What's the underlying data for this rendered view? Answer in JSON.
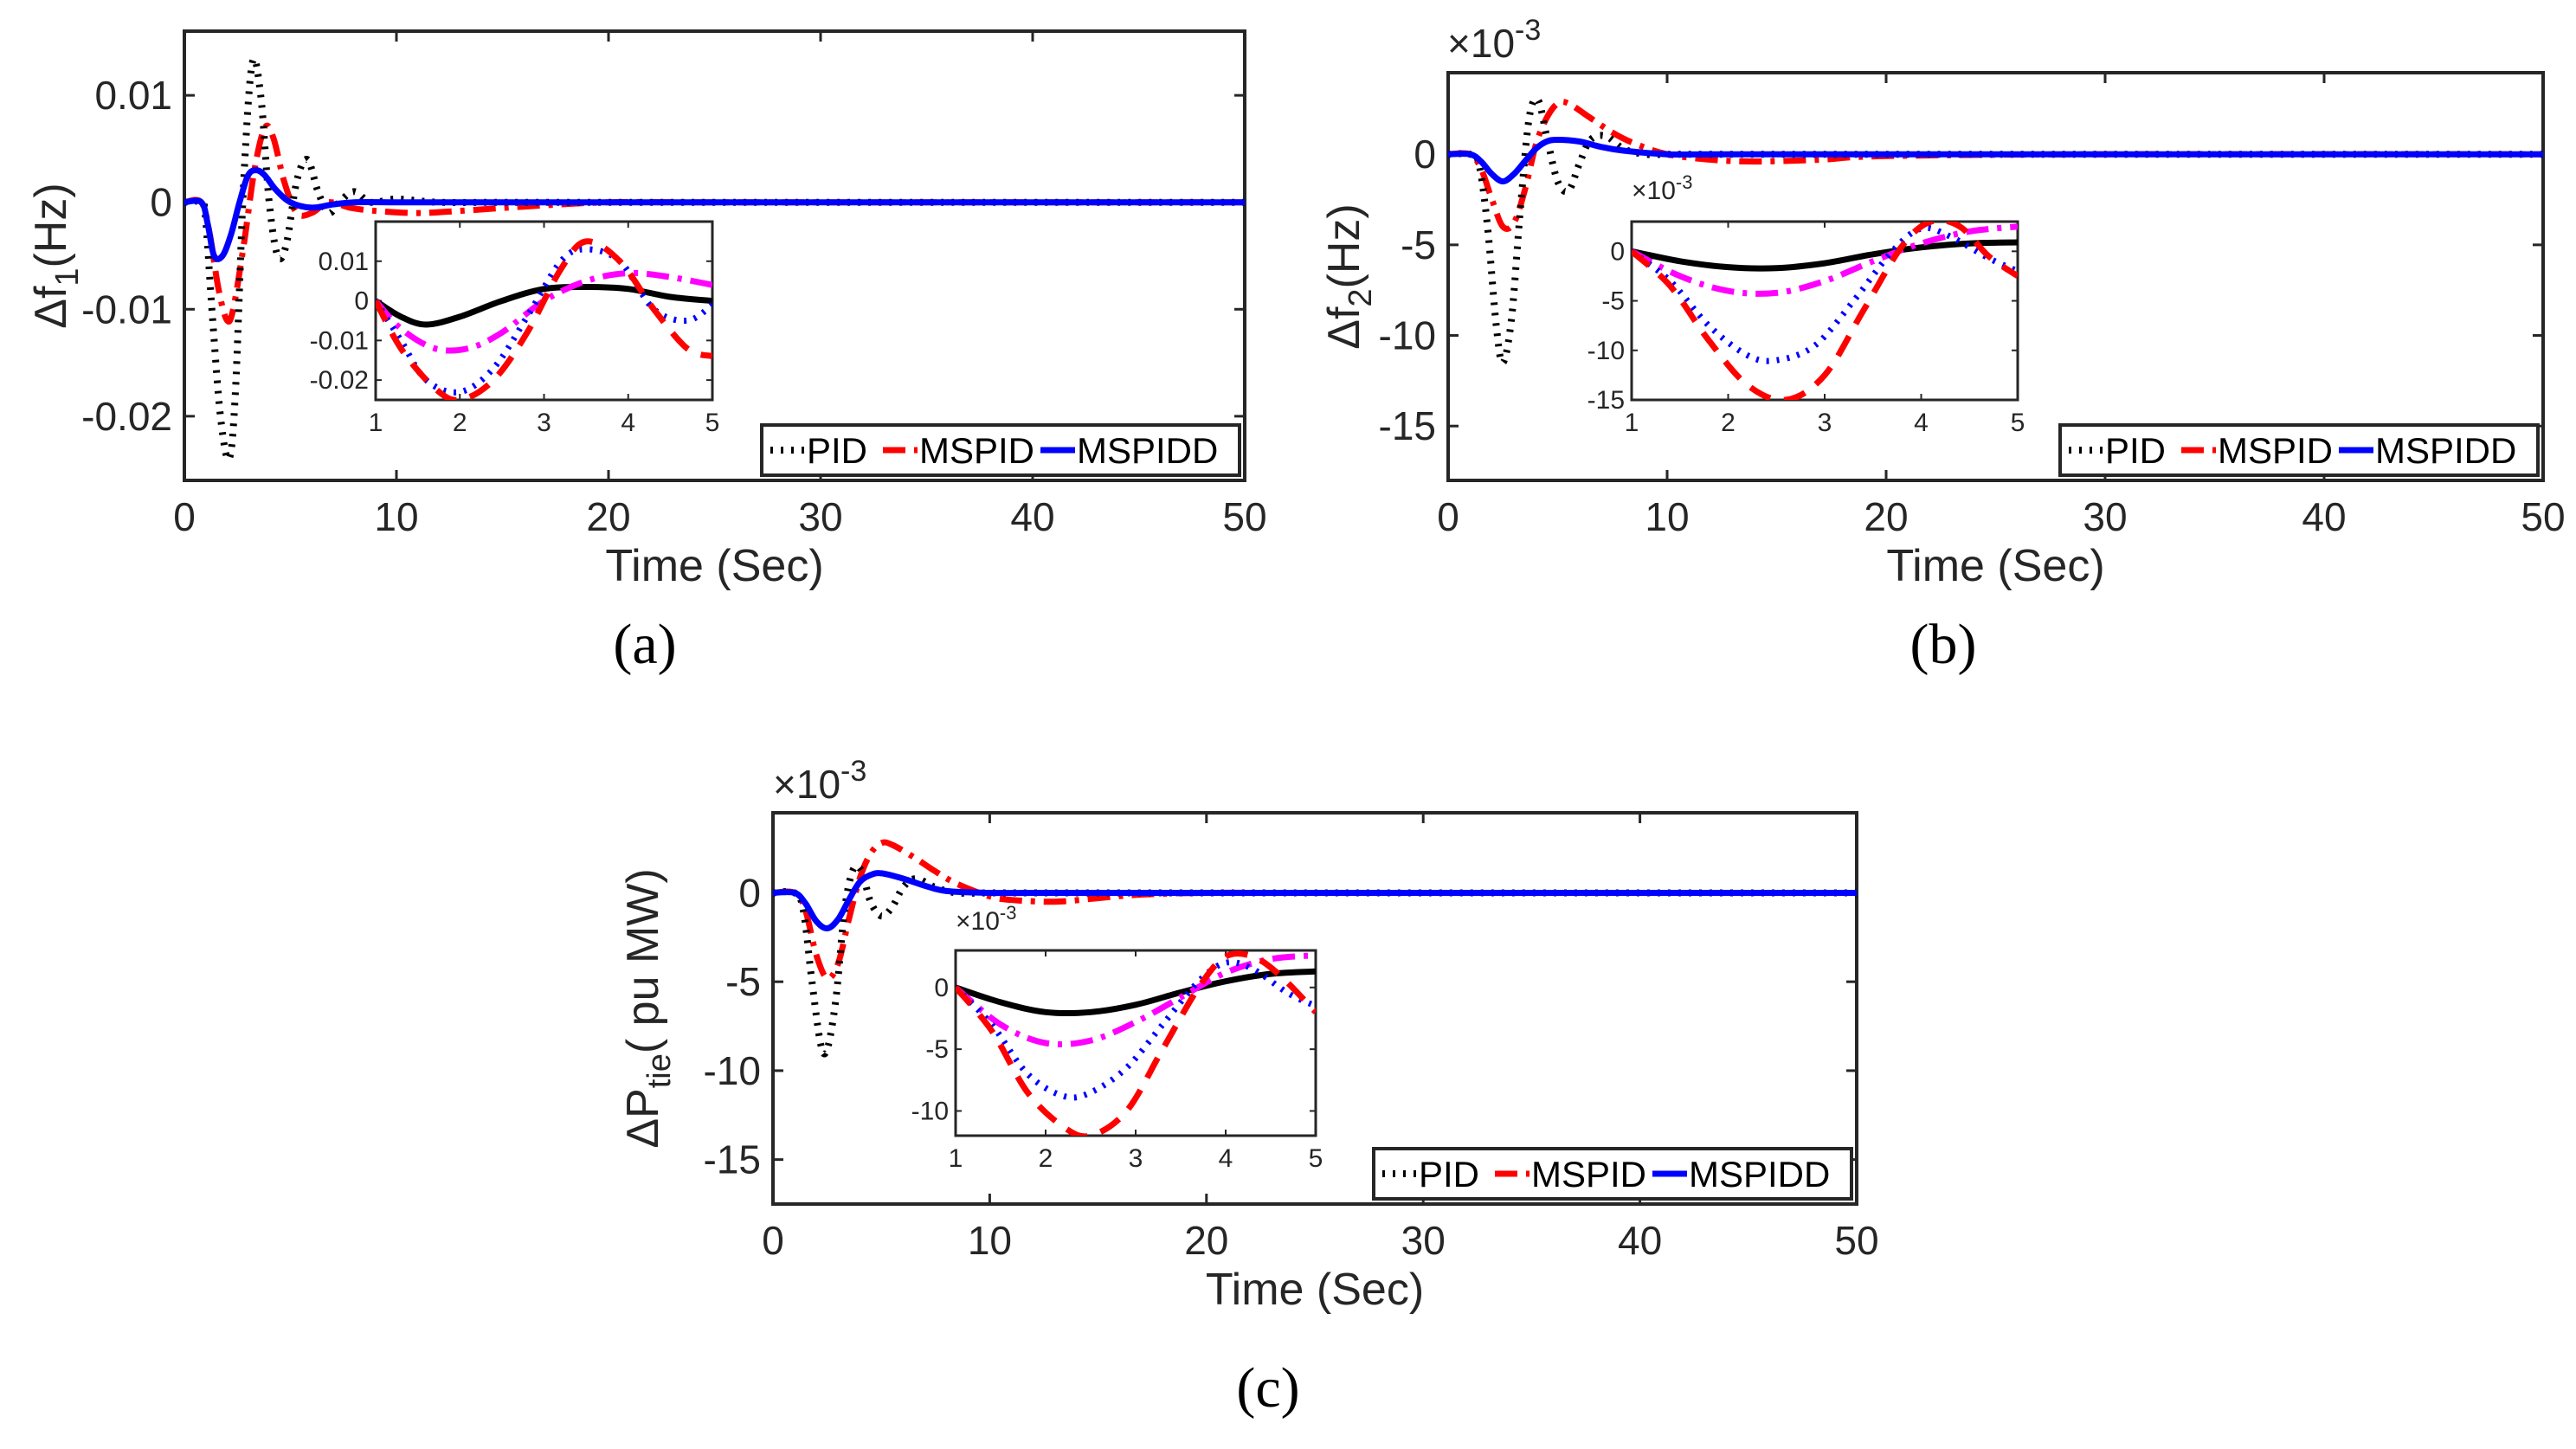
{
  "legend": [
    "PID",
    "MSPID",
    "MSPIDD"
  ],
  "colors": {
    "PID": "#000000",
    "MSPID": "#ff0000",
    "MSPIDD": "#0000ff",
    "inset_extra": "#ff00ff"
  },
  "chart_data": [
    {
      "type": "line",
      "panel_label": "(a)",
      "ylabel": "Δf",
      "ylabel_sub": "1",
      "ylabel_tail": "(Hz)",
      "xlabel": "Time (Sec)",
      "exponent": "",
      "xlim": [
        0,
        50
      ],
      "ylim": [
        -0.026,
        0.016
      ],
      "xticks": [
        0,
        10,
        20,
        30,
        40,
        50
      ],
      "yticks": [
        -0.02,
        -0.01,
        0,
        0.01
      ],
      "ytick_labels": [
        "-0.02",
        "-0.01",
        "0",
        "0.01"
      ],
      "series": [
        {
          "name": "PID",
          "style": "dotted",
          "x": [
            0,
            0.8,
            1.0,
            1.3,
            1.7,
            2.1,
            2.4,
            2.8,
            3.2,
            3.6,
            4.0,
            4.4,
            4.8,
            5.3,
            5.8,
            6.3,
            6.8,
            7.3,
            8.0,
            8.8,
            10,
            12,
            15,
            20,
            50
          ],
          "y": [
            0,
            0,
            -0.0015,
            -0.01,
            -0.02,
            -0.024,
            -0.018,
            0.002,
            0.013,
            0.01,
            0,
            -0.005,
            -0.004,
            0.002,
            0.004,
            0.001,
            -0.001,
            0,
            0.001,
            0,
            0.0003,
            0,
            0,
            0,
            0
          ]
        },
        {
          "name": "MSPID",
          "style": "dashdot",
          "x": [
            0,
            0.8,
            1.2,
            1.6,
            2.0,
            2.3,
            2.8,
            3.3,
            3.8,
            4.2,
            4.7,
            5.3,
            6.0,
            6.8,
            7.8,
            9,
            11,
            13,
            16,
            20,
            25,
            50
          ],
          "y": [
            0,
            0,
            -0.003,
            -0.008,
            -0.011,
            -0.01,
            -0.004,
            0.003,
            0.007,
            0.006,
            0.002,
            -0.001,
            -0.001,
            0,
            -0.0005,
            -0.0008,
            -0.001,
            -0.0008,
            -0.0004,
            0,
            0,
            0
          ]
        },
        {
          "name": "MSPIDD",
          "style": "solid",
          "x": [
            0,
            0.8,
            1.1,
            1.4,
            1.8,
            2.2,
            2.6,
            3.0,
            3.4,
            3.8,
            4.3,
            5.0,
            6.0,
            7.0,
            8.0,
            10,
            12,
            15,
            50
          ],
          "y": [
            0,
            0,
            -0.002,
            -0.005,
            -0.005,
            -0.003,
            0,
            0.0025,
            0.003,
            0.0025,
            0.0012,
            0,
            -0.0005,
            -0.0002,
            0,
            0,
            0,
            0,
            0
          ]
        }
      ],
      "inset": {
        "xlim": [
          1,
          5
        ],
        "ylim": [
          -0.025,
          0.02
        ],
        "xticks": [
          1,
          2,
          3,
          4,
          5
        ],
        "yticks": [
          -0.02,
          -0.01,
          0,
          0.01
        ],
        "ytick_labels": [
          "-0.02",
          "-0.01",
          "0",
          "0.01"
        ],
        "exponent": "",
        "series": [
          {
            "name": "black-solid",
            "color": "#000000",
            "style": "solid",
            "x": [
              1,
              1.3,
              1.6,
              2.0,
              2.5,
              3.0,
              3.5,
              4.0,
              4.5,
              5.0
            ],
            "y": [
              0,
              -0.004,
              -0.006,
              -0.004,
              0,
              0.003,
              0.0035,
              0.003,
              0.001,
              0
            ]
          },
          {
            "name": "magenta-dashdot",
            "color": "#ff00ff",
            "style": "dashdot",
            "x": [
              1,
              1.3,
              1.7,
              2.1,
              2.5,
              3.0,
              3.5,
              4.0,
              4.5,
              5.0
            ],
            "y": [
              0,
              -0.007,
              -0.012,
              -0.012,
              -0.008,
              0,
              0.005,
              0.007,
              0.006,
              0.004
            ]
          },
          {
            "name": "blue-dotted",
            "color": "#0000ff",
            "style": "dotted",
            "x": [
              1,
              1.3,
              1.6,
              2.0,
              2.4,
              2.8,
              3.2,
              3.5,
              3.9,
              4.3,
              4.7,
              5.0
            ],
            "y": [
              0,
              -0.01,
              -0.02,
              -0.023,
              -0.017,
              -0.004,
              0.01,
              0.013,
              0.01,
              -0.002,
              -0.005,
              -0.001
            ]
          },
          {
            "name": "red-dashed",
            "color": "#ff0000",
            "style": "dashed",
            "x": [
              1,
              1.3,
              1.7,
              2.0,
              2.4,
              2.8,
              3.2,
              3.5,
              3.9,
              4.3,
              4.7,
              5.0
            ],
            "y": [
              0,
              -0.012,
              -0.022,
              -0.025,
              -0.02,
              -0.008,
              0.008,
              0.015,
              0.01,
              -0.002,
              -0.012,
              -0.014
            ]
          }
        ]
      }
    },
    {
      "type": "line",
      "panel_label": "(b)",
      "ylabel": "Δf",
      "ylabel_sub": "2",
      "ylabel_tail": "(Hz)",
      "xlabel": "Time (Sec)",
      "exponent": "×10",
      "exponent_power": "-3",
      "xlim": [
        0,
        50
      ],
      "ylim": [
        -18,
        4.5
      ],
      "xticks": [
        0,
        10,
        20,
        30,
        40,
        50
      ],
      "yticks": [
        -15,
        -10,
        -5,
        0
      ],
      "ytick_labels": [
        "-15",
        "-10",
        "-5",
        "0"
      ],
      "series": [
        {
          "name": "PID",
          "style": "dotted",
          "x": [
            0,
            1.0,
            1.4,
            1.8,
            2.2,
            2.5,
            2.9,
            3.3,
            3.7,
            4.1,
            4.5,
            5.0,
            5.5,
            6.0,
            6.5,
            7.2,
            8.0,
            9.0,
            10,
            12,
            20,
            50
          ],
          "y": [
            0,
            0,
            -0.5,
            -4,
            -9.5,
            -11.5,
            -9,
            -3,
            2,
            3,
            1,
            -1.5,
            -2,
            -0.5,
            0.8,
            1,
            0.3,
            0,
            0,
            0,
            0,
            0
          ]
        },
        {
          "name": "MSPID",
          "style": "dashdot",
          "x": [
            0,
            1.0,
            1.5,
            2.0,
            2.5,
            3.0,
            3.5,
            4.0,
            4.5,
            5.0,
            5.5,
            6.5,
            7.5,
            8.5,
            10,
            12,
            14,
            17,
            20,
            30,
            50
          ],
          "y": [
            0,
            0,
            -0.8,
            -2.5,
            -4,
            -3.8,
            -2,
            0.5,
            2,
            2.8,
            2.8,
            2,
            1.2,
            0.6,
            0,
            -0.3,
            -0.4,
            -0.3,
            -0.1,
            0,
            0
          ]
        },
        {
          "name": "MSPIDD",
          "style": "solid",
          "x": [
            0,
            1.0,
            1.5,
            2.0,
            2.5,
            3.0,
            3.5,
            4.0,
            4.5,
            5.0,
            6.0,
            7.0,
            8.0,
            10,
            12,
            15,
            50
          ],
          "y": [
            0,
            0,
            -0.4,
            -1.1,
            -1.5,
            -1.1,
            -0.4,
            0.3,
            0.7,
            0.8,
            0.7,
            0.4,
            0.2,
            0,
            0,
            0,
            0
          ]
        }
      ],
      "inset": {
        "xlim": [
          1,
          5
        ],
        "ylim": [
          -15,
          3
        ],
        "xticks": [
          1,
          2,
          3,
          4,
          5
        ],
        "yticks": [
          -15,
          -10,
          -5,
          0
        ],
        "ytick_labels": [
          "-15",
          "-10",
          "-5",
          "0"
        ],
        "exponent": "×10",
        "exponent_power": "-3",
        "series": [
          {
            "name": "black-solid",
            "color": "#000000",
            "style": "solid",
            "x": [
              1,
              1.5,
              2.0,
              2.5,
              3.0,
              3.5,
              4.0,
              4.5,
              5.0
            ],
            "y": [
              0,
              -1,
              -1.6,
              -1.7,
              -1.2,
              -0.3,
              0.4,
              0.8,
              0.9
            ]
          },
          {
            "name": "magenta-dashdot",
            "color": "#ff00ff",
            "style": "dashdot",
            "x": [
              1,
              1.5,
              2.0,
              2.5,
              3.0,
              3.5,
              4.0,
              4.5,
              5.0
            ],
            "y": [
              0,
              -2.5,
              -4,
              -4.2,
              -3,
              -1,
              0.8,
              2,
              2.5
            ]
          },
          {
            "name": "blue-dotted",
            "color": "#0000ff",
            "style": "dotted",
            "x": [
              1,
              1.4,
              1.8,
              2.2,
              2.5,
              2.9,
              3.3,
              3.7,
              4.0,
              4.3,
              4.7,
              5.0
            ],
            "y": [
              0,
              -3,
              -7.5,
              -10.5,
              -11,
              -9.5,
              -5,
              0,
              2.3,
              1.5,
              -0.7,
              -2
            ]
          },
          {
            "name": "red-dashed",
            "color": "#ff0000",
            "style": "dashed",
            "x": [
              1,
              1.4,
              1.8,
              2.2,
              2.6,
              3.0,
              3.4,
              3.8,
              4.1,
              4.4,
              4.7,
              5.0
            ],
            "y": [
              0,
              -3.5,
              -9,
              -13.5,
              -15,
              -12.5,
              -6,
              0.5,
              3,
              2.5,
              -0.5,
              -2.5
            ]
          }
        ]
      }
    },
    {
      "type": "line",
      "panel_label": "(c)",
      "ylabel": "ΔP",
      "ylabel_sub": "tie",
      "ylabel_tail": "( pu MW)",
      "xlabel": "Time (Sec)",
      "exponent": "×10",
      "exponent_power": "-3",
      "xlim": [
        0,
        50
      ],
      "ylim": [
        -17.5,
        4.5
      ],
      "xticks": [
        0,
        10,
        20,
        30,
        40,
        50
      ],
      "yticks": [
        -15,
        -10,
        -5,
        0
      ],
      "ytick_labels": [
        "-15",
        "-10",
        "-5",
        "0"
      ],
      "series": [
        {
          "name": "PID",
          "style": "dotted",
          "x": [
            0,
            1.0,
            1.4,
            1.8,
            2.2,
            2.5,
            2.9,
            3.3,
            3.7,
            4.1,
            4.5,
            5.0,
            5.5,
            6.0,
            6.6,
            7.5,
            8.5,
            10,
            12,
            20,
            50
          ],
          "y": [
            0,
            0,
            -1,
            -5,
            -8.5,
            -8.8,
            -6,
            -1,
            1.3,
            1.2,
            -0.5,
            -1.3,
            -0.8,
            0.3,
            0.8,
            0.3,
            0,
            0,
            0,
            0,
            0
          ]
        },
        {
          "name": "MSPID",
          "style": "dashdot",
          "x": [
            0,
            1.0,
            1.5,
            2.0,
            2.5,
            3.0,
            3.5,
            4.0,
            4.5,
            5.0,
            5.5,
            6.5,
            7.5,
            8.5,
            10,
            11,
            13,
            15,
            17,
            20,
            25,
            50
          ],
          "y": [
            0,
            0,
            -1,
            -3.5,
            -4.8,
            -4,
            -1.5,
            0.8,
            2.2,
            2.8,
            2.7,
            2,
            1.2,
            0.5,
            -0.2,
            -0.4,
            -0.5,
            -0.3,
            -0.1,
            0,
            0,
            0
          ]
        },
        {
          "name": "MSPIDD",
          "style": "solid",
          "x": [
            0,
            1.0,
            1.5,
            2.0,
            2.5,
            3.0,
            3.5,
            4.0,
            4.5,
            5.0,
            6.0,
            7.0,
            8.0,
            10,
            12,
            15,
            50
          ],
          "y": [
            0,
            0,
            -0.6,
            -1.6,
            -2,
            -1.5,
            -0.4,
            0.6,
            1.0,
            1.1,
            0.8,
            0.4,
            0.1,
            0,
            0,
            0,
            0
          ]
        }
      ],
      "inset": {
        "xlim": [
          1,
          5
        ],
        "ylim": [
          -12,
          3
        ],
        "xticks": [
          1,
          2,
          3,
          4,
          5
        ],
        "yticks": [
          -10,
          -5,
          0
        ],
        "ytick_labels": [
          "-10",
          "-5",
          "0"
        ],
        "exponent": "×10",
        "exponent_power": "-3",
        "series": [
          {
            "name": "black-solid",
            "color": "#000000",
            "style": "solid",
            "x": [
              1,
              1.5,
              2.0,
              2.5,
              3.0,
              3.5,
              4.0,
              4.5,
              5.0
            ],
            "y": [
              0,
              -1.2,
              -2,
              -2,
              -1.4,
              -0.4,
              0.5,
              1.1,
              1.3
            ]
          },
          {
            "name": "magenta-dashdot",
            "color": "#ff00ff",
            "style": "dashdot",
            "x": [
              1,
              1.5,
              2.0,
              2.5,
              3.0,
              3.5,
              4.0,
              4.5,
              5.0
            ],
            "y": [
              0,
              -3,
              -4.5,
              -4.3,
              -2.8,
              -0.8,
              1.2,
              2.3,
              2.6
            ]
          },
          {
            "name": "blue-dotted",
            "color": "#0000ff",
            "style": "dotted",
            "x": [
              1,
              1.4,
              1.8,
              2.2,
              2.5,
              2.9,
              3.3,
              3.7,
              4.0,
              4.3,
              4.7,
              5.0
            ],
            "y": [
              0,
              -3,
              -7,
              -8.8,
              -8.5,
              -6.5,
              -3,
              0.5,
              2,
              1.5,
              -0.5,
              -1.5
            ]
          },
          {
            "name": "red-dashed",
            "color": "#ff0000",
            "style": "dashed",
            "x": [
              1,
              1.4,
              1.8,
              2.2,
              2.5,
              2.9,
              3.3,
              3.7,
              4.0,
              4.3,
              4.6,
              5.0
            ],
            "y": [
              0,
              -3.5,
              -8.5,
              -11.3,
              -12,
              -10,
              -5,
              0,
              2.5,
              2.5,
              1,
              -2
            ]
          }
        ]
      }
    }
  ]
}
